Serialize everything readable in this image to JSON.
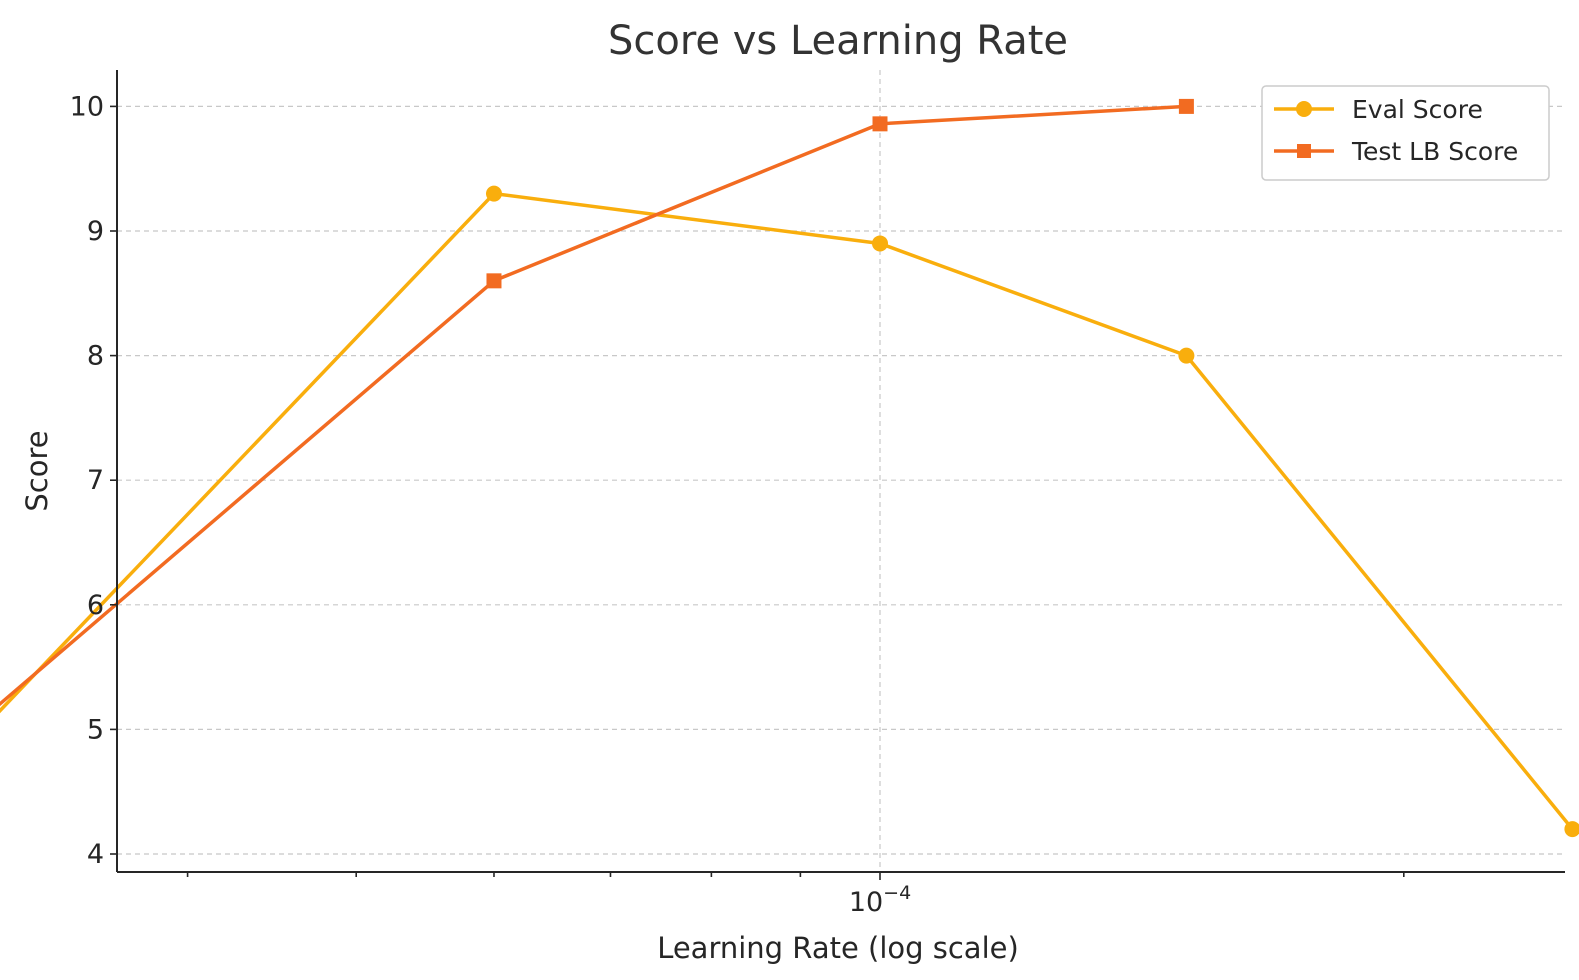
{
  "chart_data": {
    "type": "line",
    "title": "Score vs Learning Rate",
    "xlabel": "Learning Rate (log scale)",
    "ylabel": "Score",
    "x_scale": "log",
    "x_tick_label": {
      "base": "10",
      "exponent": "−4"
    },
    "ylim": [
      3.9,
      10.3
    ],
    "y_ticks": [
      4,
      5,
      6,
      7,
      8,
      9,
      10
    ],
    "grid": true,
    "legend_position": "top-right",
    "series": [
      {
        "name": "Eval Score",
        "color": "#F9AE0D",
        "marker": "circle",
        "x": [
          3e-05,
          6e-05,
          0.0001,
          0.00015,
          0.00025
        ],
        "y": [
          4.9,
          9.3,
          8.9,
          8.0,
          4.2
        ]
      },
      {
        "name": "Test LB Score",
        "color": "#F26B21",
        "marker": "square",
        "x": [
          3e-05,
          6e-05,
          0.0001,
          0.00015
        ],
        "y": [
          5.0,
          8.6,
          9.86,
          10.0
        ]
      }
    ]
  }
}
